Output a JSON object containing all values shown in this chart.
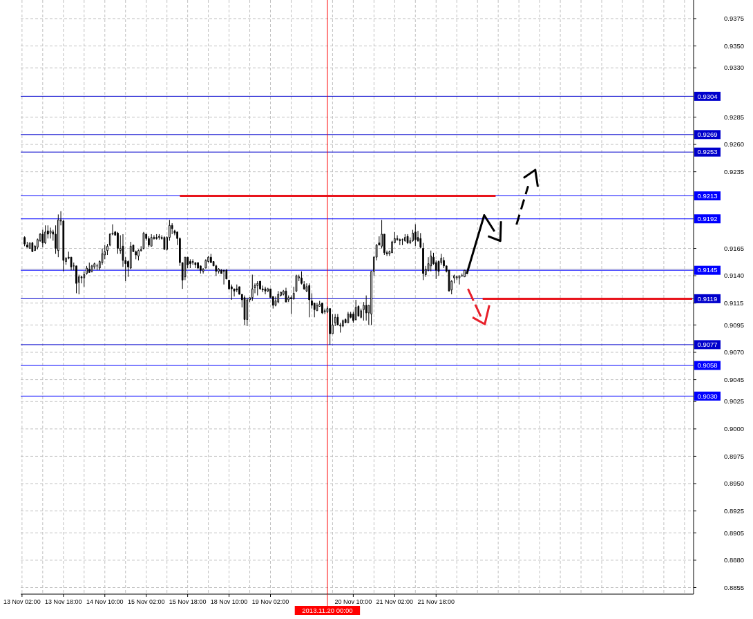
{
  "chart_data": {
    "type": "candlestick",
    "categories": [
      "13 Nov 02:00",
      null,
      null,
      null,
      null,
      null,
      null,
      null,
      null,
      null,
      null,
      null,
      null,
      null,
      null,
      null,
      "13 Nov 18:00",
      null,
      null,
      null,
      null,
      null,
      null,
      null,
      null,
      null,
      null,
      null,
      null,
      null,
      null,
      null,
      "14 Nov 10:00",
      null,
      null,
      null,
      null,
      null,
      null,
      null,
      null,
      null,
      null,
      null,
      null,
      null,
      null,
      null,
      "15 Nov 02:00",
      null,
      null,
      null,
      null,
      null,
      null,
      null,
      null,
      null,
      null,
      null,
      null,
      null,
      null,
      null,
      "15 Nov 18:00",
      null,
      null,
      null,
      null,
      null,
      null,
      null,
      null,
      null,
      null,
      null,
      null,
      null,
      null,
      null,
      "18 Nov 10:00",
      null,
      null,
      null,
      null,
      null,
      null,
      null,
      null,
      null,
      null,
      null,
      null,
      null,
      null,
      null,
      "19 Nov 02:00",
      null,
      null,
      null,
      null,
      null,
      null,
      null,
      null,
      null,
      null,
      null,
      null,
      null,
      null,
      null,
      null,
      null,
      null,
      null,
      null,
      null,
      "2013.11.20 00:00",
      null,
      null,
      null,
      null,
      null,
      null,
      null,
      null,
      null,
      "20 Nov 10:00",
      null,
      null,
      null,
      null,
      null,
      null,
      null,
      null,
      null,
      null,
      null,
      null,
      null,
      null,
      null,
      "21 Nov 02:00",
      null,
      null,
      null,
      null,
      null,
      null,
      null,
      null,
      null,
      null,
      null,
      null,
      null,
      null,
      null,
      "21 Nov 18:00",
      null,
      null,
      null,
      null,
      null,
      null,
      null,
      null,
      null,
      null,
      null,
      null,
      null,
      null,
      null,
      null,
      null,
      null,
      null,
      null,
      null,
      null,
      null,
      null,
      null,
      null,
      null,
      null,
      null,
      null,
      null,
      null,
      null,
      null,
      null,
      null,
      null,
      null,
      null,
      null,
      null,
      null,
      null,
      null,
      null,
      null,
      null,
      null,
      null,
      null,
      null,
      null,
      null,
      null,
      null,
      null,
      null,
      null,
      null,
      null,
      null,
      null,
      null,
      null,
      null,
      null,
      null,
      null,
      null,
      null,
      null,
      null,
      null,
      null,
      null,
      null,
      null,
      null,
      null,
      null,
      null,
      null,
      null,
      null,
      null,
      null,
      null,
      null,
      null,
      null,
      null,
      null,
      null,
      null,
      null,
      null,
      null,
      null,
      null
    ],
    "ohlc": [
      null,
      [
        0.9175,
        0.9176,
        0.9167,
        0.9169
      ],
      [
        0.9168,
        0.9171,
        0.9166,
        0.9166
      ],
      [
        0.9165,
        0.917,
        0.9165,
        0.917
      ],
      [
        0.917,
        0.9171,
        0.9162,
        0.9162
      ],
      [
        0.9163,
        0.9168,
        0.9163,
        0.9167
      ],
      [
        0.9166,
        0.9174,
        0.9164,
        0.9173
      ],
      [
        0.9172,
        0.9179,
        0.9171,
        0.9178
      ],
      [
        0.9178,
        0.9182,
        0.9166,
        0.917
      ],
      [
        0.917,
        0.9186,
        0.9169,
        0.918
      ],
      [
        0.9181,
        0.9186,
        0.9174,
        0.9178
      ],
      [
        0.9179,
        0.9184,
        0.9174,
        0.9181
      ],
      [
        0.918,
        0.9182,
        0.9172,
        0.9178
      ],
      [
        0.9178,
        0.9186,
        0.916,
        0.9165
      ],
      [
        0.9163,
        0.9196,
        0.9157,
        0.9191
      ],
      [
        0.919,
        0.9199,
        0.9186,
        0.9191
      ],
      [
        0.919,
        0.9191,
        0.9144,
        0.9154
      ],
      [
        0.9153,
        0.9157,
        0.915,
        0.9156
      ],
      [
        0.9157,
        0.9162,
        0.9155,
        0.9156
      ],
      [
        0.9157,
        0.9157,
        0.9145,
        0.9148
      ],
      [
        0.9149,
        0.9152,
        0.9145,
        0.9149
      ],
      [
        0.9149,
        0.9149,
        0.9124,
        0.9133
      ],
      [
        0.9134,
        0.9141,
        0.9123,
        0.9139
      ],
      [
        0.9139,
        0.914,
        0.9133,
        0.9138
      ],
      [
        0.9138,
        0.9144,
        0.913,
        0.9141
      ],
      [
        0.9142,
        0.9149,
        0.9141,
        0.9147
      ],
      [
        0.9146,
        0.9152,
        0.9143,
        0.9143
      ],
      [
        0.9144,
        0.915,
        0.9143,
        0.9149
      ],
      [
        0.9148,
        0.9152,
        0.9146,
        0.9151
      ],
      [
        0.9149,
        0.9151,
        0.9145,
        0.9149
      ],
      [
        0.9147,
        0.9154,
        0.9145,
        0.9153
      ],
      [
        0.9152,
        0.9165,
        0.915,
        0.916
      ],
      [
        0.9159,
        0.9168,
        0.9155,
        0.9162
      ],
      [
        0.9163,
        0.9169,
        0.9159,
        0.9167
      ],
      [
        0.9168,
        0.9179,
        0.9167,
        0.9178
      ],
      [
        0.9178,
        0.9187,
        0.9177,
        0.9179
      ],
      [
        0.918,
        0.9181,
        0.9177,
        0.9177
      ],
      [
        0.9179,
        0.918,
        0.916,
        0.9165
      ],
      [
        0.9163,
        0.9177,
        0.916,
        0.9165
      ],
      [
        0.9167,
        0.9178,
        0.9148,
        0.9154
      ],
      [
        0.9154,
        0.9157,
        0.9135,
        0.9151
      ],
      [
        0.9153,
        0.9154,
        0.9139,
        0.9148
      ],
      [
        0.9147,
        0.9171,
        0.9146,
        0.9167
      ],
      [
        0.9168,
        0.9168,
        0.9162,
        0.9162
      ],
      [
        0.9162,
        0.9163,
        0.9155,
        0.9159
      ],
      [
        0.9158,
        0.9164,
        0.9154,
        0.9163
      ],
      [
        0.9163,
        0.9167,
        0.9162,
        0.9164
      ],
      [
        0.9165,
        0.918,
        0.9164,
        0.9179
      ],
      [
        0.9178,
        0.9178,
        0.9172,
        0.9174
      ],
      [
        0.9174,
        0.9176,
        0.9166,
        0.9168
      ],
      [
        0.9167,
        0.9178,
        0.9167,
        0.9175
      ],
      [
        0.9175,
        0.9177,
        0.9173,
        0.9174
      ],
      [
        0.9175,
        0.9178,
        0.9173,
        0.9174
      ],
      [
        0.9175,
        0.9178,
        0.9173,
        0.9176
      ],
      [
        0.9175,
        0.9177,
        0.9173,
        0.9174
      ],
      [
        0.9175,
        0.9176,
        0.9164,
        0.9164
      ],
      [
        0.9164,
        0.9176,
        0.9163,
        0.9175
      ],
      [
        0.9175,
        0.9191,
        0.9172,
        0.9186
      ],
      [
        0.9186,
        0.9188,
        0.9178,
        0.9183
      ],
      [
        0.9181,
        0.9182,
        0.9177,
        0.9179
      ],
      [
        0.918,
        0.918,
        0.9168,
        0.9174
      ],
      [
        0.9174,
        0.9175,
        0.9149,
        0.9152
      ],
      [
        0.9152,
        0.9152,
        0.9128,
        0.9136
      ],
      [
        0.9139,
        0.9157,
        0.9136,
        0.9157
      ],
      [
        0.9157,
        0.9157,
        0.9147,
        0.915
      ],
      [
        0.9153,
        0.9155,
        0.9147,
        0.9151
      ],
      [
        0.9152,
        0.9155,
        0.915,
        0.9153
      ],
      [
        0.9152,
        0.9152,
        0.9147,
        0.915
      ],
      [
        0.9152,
        0.9152,
        0.9146,
        0.9147
      ],
      [
        0.9149,
        0.9149,
        0.9142,
        0.9145
      ],
      [
        0.9144,
        0.9147,
        0.9142,
        0.9146
      ],
      [
        0.9147,
        0.9155,
        0.9147,
        0.9154
      ],
      [
        0.9153,
        0.9158,
        0.9152,
        0.9157
      ],
      [
        0.9157,
        0.916,
        0.9152,
        0.9152
      ],
      [
        0.9153,
        0.9153,
        0.9149,
        0.9149
      ],
      [
        0.9149,
        0.915,
        0.914,
        0.9144
      ],
      [
        0.9144,
        0.9147,
        0.9142,
        0.9146
      ],
      [
        0.9145,
        0.9146,
        0.9142,
        0.9142
      ],
      [
        0.9145,
        0.9145,
        0.9132,
        0.9144
      ],
      [
        0.9145,
        0.9146,
        0.9137,
        0.9137
      ],
      [
        0.9136,
        0.9136,
        0.9127,
        0.9128
      ],
      [
        0.913,
        0.9132,
        0.9118,
        0.9128
      ],
      [
        0.9128,
        0.9128,
        0.9121,
        0.9126
      ],
      [
        0.9128,
        0.9132,
        0.9125,
        0.9127
      ],
      [
        0.913,
        0.913,
        0.9123,
        0.9123
      ],
      [
        0.9123,
        0.9123,
        0.9111,
        0.9118
      ],
      [
        0.912,
        0.9122,
        0.9095,
        0.91
      ],
      [
        0.91,
        0.912,
        0.9094,
        0.9118
      ],
      [
        0.9118,
        0.912,
        0.9116,
        0.912
      ],
      [
        0.912,
        0.9141,
        0.9117,
        0.9128
      ],
      [
        0.9129,
        0.9133,
        0.9124,
        0.9131
      ],
      [
        0.9131,
        0.9135,
        0.9122,
        0.9133
      ],
      [
        0.9135,
        0.9135,
        0.9127,
        0.9128
      ],
      [
        0.9128,
        0.9131,
        0.9125,
        0.9127
      ],
      [
        0.9128,
        0.913,
        0.9123,
        0.9126
      ],
      [
        0.9126,
        0.9129,
        0.9125,
        0.9128
      ],
      [
        0.9128,
        0.9128,
        0.912,
        0.912
      ],
      [
        0.9121,
        0.9121,
        0.911,
        0.9113
      ],
      [
        0.9113,
        0.9121,
        0.9112,
        0.9117
      ],
      [
        0.9116,
        0.9126,
        0.9115,
        0.9123
      ],
      [
        0.9122,
        0.9125,
        0.9121,
        0.9125
      ],
      [
        0.9123,
        0.9127,
        0.9122,
        0.9126
      ],
      [
        0.9126,
        0.9129,
        0.9116,
        0.9116
      ],
      [
        0.9118,
        0.9122,
        0.9116,
        0.912
      ],
      [
        0.912,
        0.9122,
        0.9105,
        0.9119
      ],
      [
        0.9119,
        0.913,
        0.9118,
        0.9124
      ],
      [
        0.9126,
        0.9141,
        0.9125,
        0.914
      ],
      [
        0.9138,
        0.9141,
        0.9135,
        0.9139
      ],
      [
        0.9138,
        0.9144,
        0.9132,
        0.9133
      ],
      [
        0.9132,
        0.9135,
        0.9127,
        0.9128
      ],
      [
        0.9126,
        0.9133,
        0.9125,
        0.913
      ],
      [
        0.9131,
        0.9133,
        0.9102,
        0.9118
      ],
      [
        0.9117,
        0.9124,
        0.911,
        0.9113
      ],
      [
        0.9115,
        0.9115,
        0.9102,
        0.9109
      ],
      [
        0.9108,
        0.9115,
        0.9108,
        0.9113
      ],
      [
        0.9112,
        0.9117,
        0.9112,
        0.9114
      ],
      [
        0.9115,
        0.9115,
        0.9105,
        0.9106
      ],
      [
        0.9107,
        0.911,
        0.9105,
        0.9108
      ],
      [
        0.9107,
        0.9112,
        0.9106,
        0.911
      ],
      [
        0.911,
        0.911,
        0.9077,
        0.9087
      ],
      [
        0.9087,
        0.9105,
        0.9087,
        0.9095
      ],
      [
        0.9097,
        0.9105,
        0.9094,
        0.9102
      ],
      [
        0.9102,
        0.9105,
        0.9095,
        0.9095
      ],
      [
        0.9094,
        0.9097,
        0.9088,
        0.9095
      ],
      [
        0.9094,
        0.91,
        0.9093,
        0.9099
      ],
      [
        0.91,
        0.9101,
        0.9097,
        0.9097
      ],
      [
        0.9097,
        0.9107,
        0.9097,
        0.9105
      ],
      [
        0.9105,
        0.9107,
        0.9101,
        0.9102
      ],
      [
        0.9105,
        0.9107,
        0.9097,
        0.9099
      ],
      [
        0.91,
        0.9118,
        0.9099,
        0.9111
      ],
      [
        0.9112,
        0.9113,
        0.9103,
        0.9103
      ],
      [
        0.9102,
        0.911,
        0.9101,
        0.9108
      ],
      [
        0.9109,
        0.9116,
        0.9099,
        0.9113
      ],
      [
        0.9113,
        0.9122,
        0.9099,
        0.9106
      ],
      [
        0.9106,
        0.9113,
        0.9095,
        0.9113
      ],
      [
        0.9105,
        0.9144,
        0.9095,
        0.9144
      ],
      [
        0.9144,
        0.9158,
        0.914,
        0.9157
      ],
      [
        0.9157,
        0.9169,
        0.9154,
        0.9168
      ],
      [
        0.917,
        0.9176,
        0.9168,
        0.9168
      ],
      [
        0.9167,
        0.9191,
        0.9165,
        0.9178
      ],
      [
        0.9178,
        0.9178,
        0.9159,
        0.9161
      ],
      [
        0.9161,
        0.9163,
        0.9158,
        0.916
      ],
      [
        0.916,
        0.9163,
        0.9158,
        0.9162
      ],
      [
        0.9161,
        0.9172,
        0.9161,
        0.9171
      ],
      [
        0.917,
        0.918,
        0.917,
        0.9174
      ],
      [
        0.9174,
        0.9177,
        0.9172,
        0.9173
      ],
      [
        0.9173,
        0.9174,
        0.9168,
        0.9172
      ],
      [
        0.9173,
        0.9174,
        0.9168,
        0.9173
      ],
      [
        0.9172,
        0.9178,
        0.9171,
        0.9175
      ],
      [
        0.9176,
        0.9178,
        0.9169,
        0.917
      ],
      [
        0.917,
        0.9175,
        0.9169,
        0.9172
      ],
      [
        0.9172,
        0.9182,
        0.9171,
        0.9179
      ],
      [
        0.918,
        0.9187,
        0.9167,
        0.9173
      ],
      [
        0.9175,
        0.9181,
        0.9171,
        0.9172
      ],
      [
        0.9174,
        0.9179,
        0.9165,
        0.9166
      ],
      [
        0.9165,
        0.917,
        0.9136,
        0.9142
      ],
      [
        0.9141,
        0.9149,
        0.9139,
        0.9146
      ],
      [
        0.9145,
        0.9157,
        0.9144,
        0.9151
      ],
      [
        0.9149,
        0.9163,
        0.9144,
        0.9158
      ],
      [
        0.9157,
        0.9161,
        0.915,
        0.9151
      ],
      [
        0.9152,
        0.9154,
        0.9137,
        0.9145
      ],
      [
        0.9153,
        0.9154,
        0.914,
        0.9144
      ],
      [
        0.9152,
        0.916,
        0.915,
        0.9156
      ],
      [
        0.9154,
        0.9157,
        0.9147,
        0.9149
      ],
      [
        0.9149,
        0.9149,
        0.9143,
        0.9144
      ],
      [
        0.9145,
        0.9145,
        0.9126,
        0.9126
      ],
      [
        0.9127,
        0.9136,
        0.9123,
        0.9135
      ],
      [
        0.9138,
        0.9141,
        0.9133,
        0.914
      ],
      [
        0.9138,
        0.914,
        0.9136,
        0.9139
      ],
      [
        0.9138,
        0.914,
        0.9132,
        0.914
      ],
      [
        0.914,
        0.9142,
        0.9139,
        0.914
      ],
      [
        0.9139,
        0.9145,
        0.9139,
        0.9145
      ],
      null,
      null,
      null,
      null,
      null,
      null,
      null,
      null,
      null,
      null,
      null,
      null,
      null,
      null,
      null,
      null,
      null,
      null,
      null,
      null,
      null,
      null,
      null,
      null,
      null,
      null,
      null,
      null,
      null,
      null,
      null,
      null,
      null,
      null,
      null,
      null,
      null,
      null,
      null,
      null,
      null,
      null,
      null,
      null,
      null,
      null,
      null,
      null,
      null,
      null,
      null,
      null,
      null,
      null,
      null,
      null,
      null,
      null,
      null,
      null,
      null,
      null,
      null,
      null,
      null,
      null,
      null,
      null,
      null,
      null,
      null,
      null,
      null,
      null,
      null,
      null,
      null,
      null,
      null,
      null,
      null,
      null,
      null,
      null,
      null,
      null,
      null,
      null
    ],
    "series": [
      {
        "type": "line",
        "color": "#e8141c",
        "values": [
          null,
          null,
          null,
          null,
          null,
          null,
          null,
          null,
          null,
          null,
          null,
          null,
          null,
          null,
          null,
          null,
          null,
          null,
          null,
          null,
          null,
          null,
          null,
          null,
          null,
          null,
          null,
          null,
          null,
          null,
          null,
          null,
          null,
          null,
          null,
          null,
          null,
          null,
          null,
          null,
          null,
          null,
          null,
          null,
          null,
          null,
          null,
          null,
          null,
          null,
          null,
          null,
          null,
          null,
          null,
          null,
          null,
          null,
          null,
          null,
          null,
          0.9213,
          0.9213,
          0.9213,
          0.9213,
          0.9213,
          0.9213,
          0.9213,
          0.9213,
          0.9213,
          0.9213,
          0.9213,
          0.9213,
          0.9213,
          0.9213,
          0.9213,
          0.9213,
          0.9213,
          0.9213,
          0.9213,
          0.9213,
          0.9213,
          0.9213,
          0.9213,
          0.9213,
          0.9213,
          0.9213,
          0.9213,
          0.9213,
          0.9213,
          0.9213,
          0.9213,
          0.9213,
          0.9213,
          0.9213,
          0.9213,
          0.9213,
          0.9213,
          0.9213,
          0.9213,
          0.9213,
          0.9213,
          0.9213,
          0.9213,
          0.9213,
          0.9213,
          0.9213,
          0.9213,
          0.9213,
          0.9213,
          0.9213,
          0.9213,
          0.9213,
          0.9213,
          0.9213,
          0.9213,
          0.9213,
          0.9213,
          0.9213,
          0.9213,
          0.9213,
          0.9213,
          0.9213,
          0.9213,
          0.9213,
          0.9213,
          0.9213,
          0.9213,
          0.9213,
          0.9213,
          0.9213,
          0.9213,
          0.9213,
          0.9213,
          0.9213,
          0.9213,
          0.9213,
          0.9213,
          0.9213,
          0.9213,
          0.9213,
          0.9213,
          0.9213,
          0.9213,
          0.9213,
          0.9213,
          0.9213,
          0.9213,
          0.9213,
          0.9213,
          0.9213,
          0.9213,
          0.9213,
          0.9213,
          0.9213,
          0.9213,
          0.9213,
          0.9213,
          0.9213,
          0.9213,
          0.9213,
          0.9213,
          0.9213,
          0.9213,
          0.9213,
          0.9213,
          0.9213,
          0.9213,
          0.9213,
          0.9213,
          0.9213,
          0.9213,
          0.9213,
          0.9213,
          0.9213,
          0.9213,
          0.9213,
          0.9213,
          0.9213,
          0.9213,
          0.9213,
          0.9213,
          0.9213,
          0.9213,
          null,
          null,
          null,
          null,
          null,
          null,
          null,
          null,
          null,
          null,
          null,
          null,
          null,
          null,
          null,
          null,
          null,
          null,
          null,
          null,
          null,
          null,
          null,
          null,
          null,
          null,
          null,
          null,
          null,
          null,
          null,
          null,
          null,
          null,
          null,
          null,
          null,
          null,
          null,
          null,
          null,
          null,
          null,
          null,
          null,
          null,
          null,
          null,
          null,
          null,
          null,
          null,
          null,
          null,
          null,
          null,
          null,
          null,
          null,
          null,
          null,
          null,
          null,
          null,
          null,
          null,
          null,
          null,
          null,
          null,
          null,
          null,
          null,
          null,
          null,
          null
        ]
      },
      {
        "type": "line",
        "color": "#e8141c",
        "values": [
          null,
          null,
          null,
          null,
          null,
          null,
          null,
          null,
          null,
          null,
          null,
          null,
          null,
          null,
          null,
          null,
          null,
          null,
          null,
          null,
          null,
          null,
          null,
          null,
          null,
          null,
          null,
          null,
          null,
          null,
          null,
          null,
          null,
          null,
          null,
          null,
          null,
          null,
          null,
          null,
          null,
          null,
          null,
          null,
          null,
          null,
          null,
          null,
          null,
          null,
          null,
          null,
          null,
          null,
          null,
          null,
          null,
          null,
          null,
          null,
          null,
          null,
          null,
          null,
          null,
          null,
          null,
          null,
          null,
          null,
          null,
          null,
          null,
          null,
          null,
          null,
          null,
          null,
          null,
          null,
          null,
          null,
          null,
          null,
          null,
          null,
          null,
          null,
          null,
          null,
          null,
          null,
          null,
          null,
          null,
          null,
          null,
          null,
          null,
          null,
          null,
          null,
          null,
          null,
          null,
          null,
          null,
          null,
          null,
          null,
          null,
          null,
          null,
          null,
          null,
          null,
          null,
          null,
          null,
          null,
          null,
          null,
          null,
          null,
          null,
          null,
          null,
          null,
          null,
          null,
          null,
          null,
          null,
          null,
          null,
          null,
          null,
          null,
          null,
          null,
          null,
          null,
          null,
          null,
          null,
          null,
          null,
          null,
          null,
          null,
          null,
          null,
          null,
          null,
          null,
          null,
          null,
          null,
          null,
          null,
          null,
          null,
          null,
          null,
          null,
          null,
          null,
          null,
          null,
          null,
          null,
          null,
          null,
          null,
          null,
          null,
          null,
          null,
          0.9119,
          0.9119,
          0.9119,
          0.9119,
          0.9119,
          0.9119,
          0.9119,
          0.9119,
          0.9119,
          0.9119,
          0.9119,
          0.9119,
          0.9119,
          0.9119,
          0.9119,
          0.9119,
          0.9119,
          0.9119,
          0.9119,
          0.9119,
          0.9119,
          0.9119,
          0.9119,
          0.9119,
          0.9119,
          0.9119,
          0.9119,
          0.9119,
          0.9119,
          0.9119,
          0.9119,
          0.9119,
          0.9119,
          0.9119,
          0.9119,
          0.9119,
          0.9119,
          0.9119,
          0.9119,
          0.9119,
          0.9119,
          0.9119,
          0.9119,
          0.9119,
          0.9119,
          0.9119,
          0.9119,
          0.9119,
          0.9119,
          0.9119,
          0.9119,
          0.9119,
          0.9119,
          0.9119,
          0.9119,
          0.9119,
          0.9119,
          0.9119,
          0.9119,
          0.9119,
          0.9119,
          0.9119,
          0.9119,
          0.9119,
          0.9119,
          0.9119,
          0.9119,
          0.9119,
          0.9119,
          0.9119,
          0.9119,
          0.9119,
          0.9119,
          0.9119,
          0.9119,
          0.9119,
          0.9119,
          0.9119,
          0.9119,
          0.9119,
          0.9119,
          0.9119
        ]
      }
    ],
    "ylim": [
      0.8849,
      0.9392
    ],
    "yticks": [
      0.9375,
      {
        "value": 0.935,
        "label": "0.9350"
      },
      {
        "value": 0.933,
        "label": "0.9330"
      },
      0.9285,
      {
        "value": 0.926,
        "label": "0.9260"
      },
      0.9235,
      0.9165,
      {
        "value": 0.914,
        "label": "0.9140"
      },
      0.9115,
      0.9095,
      {
        "value": 0.907,
        "label": "0.9070"
      },
      0.9045,
      0.9025,
      {
        "value": 0.9,
        "label": "0.9000"
      },
      0.8975,
      {
        "value": 0.895,
        "label": "0.8950"
      },
      0.8925,
      0.8905,
      {
        "value": 0.888,
        "label": "0.8880"
      },
      0.8855
    ],
    "ref_lines": [
      {
        "axis": "y",
        "value": 0.9146,
        "color": "#c0c0c0"
      },
      {
        "axis": "y",
        "value": 0.9304,
        "label": "0.9304",
        "color": "#0000cc"
      },
      {
        "axis": "y",
        "value": 0.9269,
        "label": "0.9269",
        "color": "#0000cc"
      },
      {
        "axis": "y",
        "value": 0.9253,
        "label": "0.9253",
        "color": "#0000cc"
      },
      {
        "axis": "y",
        "value": 0.9213,
        "label": "0.9213",
        "color": "#0000ff"
      },
      {
        "axis": "y",
        "value": 0.9192,
        "label": "0.9192",
        "color": "#0000ff"
      },
      {
        "axis": "y",
        "value": 0.9145,
        "label": "0.9145",
        "color": "#0000ff"
      },
      {
        "axis": "y",
        "value": 0.9119,
        "label": "0.9119",
        "color": "#0000cc"
      },
      {
        "axis": "y",
        "value": 0.9077,
        "label": "0.9077",
        "color": "#0000cc"
      },
      {
        "axis": "y",
        "value": 0.9058,
        "label": "0.9058",
        "color": "#0000ff"
      },
      {
        "axis": "y",
        "value": 0.903,
        "label": "0.9030",
        "color": "#0000ff"
      },
      {
        "axis": "x",
        "value": "2013.11.20 00:00",
        "color": "#ff0000"
      }
    ],
    "grid": true
  }
}
